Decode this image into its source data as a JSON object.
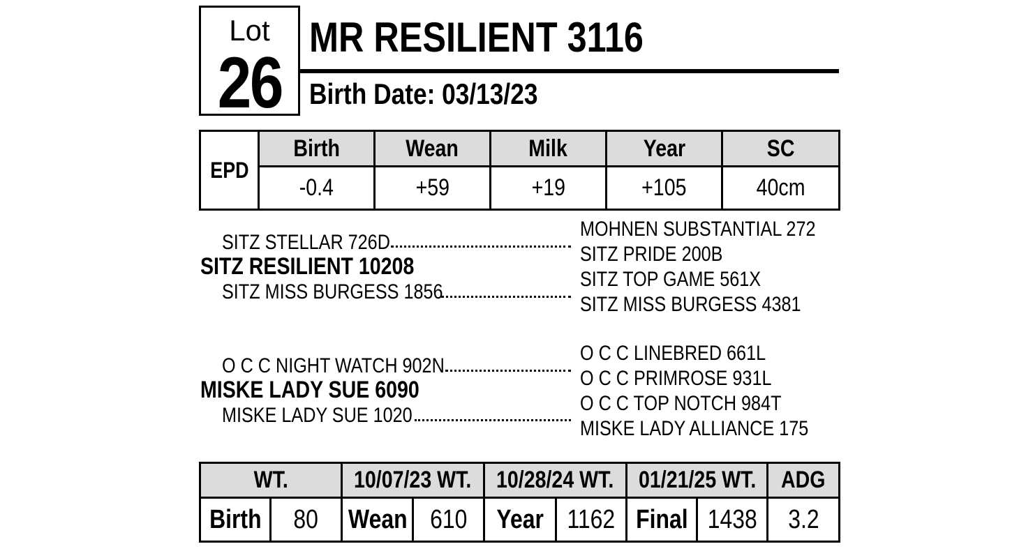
{
  "lot": {
    "label": "Lot",
    "number": "26"
  },
  "animal": {
    "name": "MR RESILIENT 3116",
    "birth_date": "Birth Date: 03/13/23"
  },
  "epd": {
    "label": "EPD",
    "headers": [
      "Birth",
      "Wean",
      "Milk",
      "Year",
      "SC"
    ],
    "values": [
      "-0.4",
      "+59",
      "+19",
      "+105",
      "40cm"
    ]
  },
  "pedigree": {
    "sire": {
      "name": "SITZ RESILIENT 10208",
      "sire": "SITZ STELLAR 726D",
      "dam": "SITZ MISS BURGESS 1856",
      "grand": [
        "MOHNEN SUBSTANTIAL 272",
        "SITZ PRIDE 200B",
        "SITZ TOP GAME 561X",
        "SITZ MISS BURGESS 4381"
      ]
    },
    "dam": {
      "name": "MISKE LADY SUE 6090",
      "sire": "O C C NIGHT WATCH 902N",
      "dam": "MISKE LADY SUE 1020",
      "grand": [
        "O C C LINEBRED 661L",
        "O C C PRIMROSE 931L",
        "O C C TOP NOTCH 984T",
        "MISKE LADY ALLIANCE 175"
      ]
    }
  },
  "weights": {
    "headers": [
      "WT.",
      "10/07/23 WT.",
      "10/28/24 WT.",
      "01/21/25 WT.",
      "ADG"
    ],
    "cells": [
      "Birth",
      "80",
      "Wean",
      "610",
      "Year",
      "1162",
      "Final",
      "1438",
      "3.2"
    ]
  }
}
